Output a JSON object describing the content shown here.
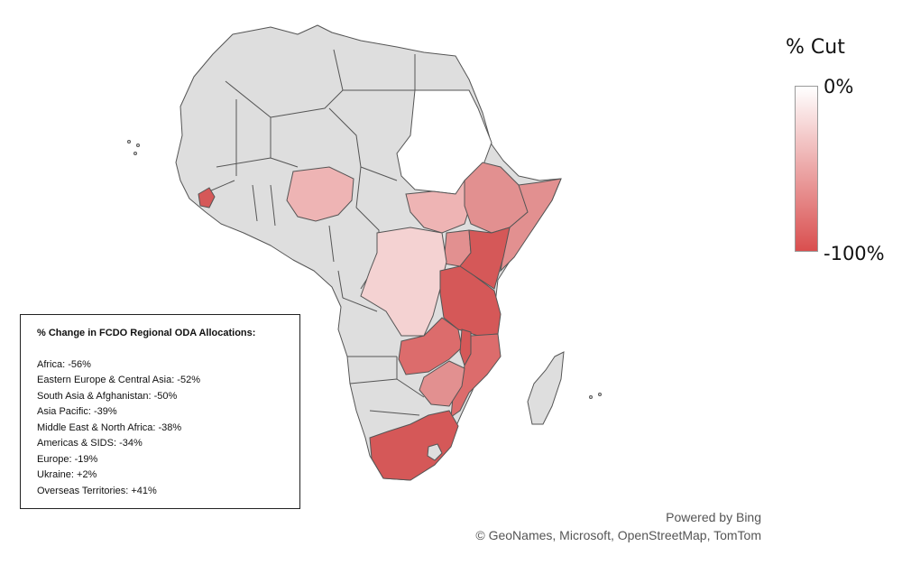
{
  "legend": {
    "title": "% Cut",
    "max_label": "0%",
    "min_label": "-100%",
    "color_low": "#ffffff",
    "color_high": "#d94f4f"
  },
  "info": {
    "title": "% Change in FCDO Regional  ODA Allocations:",
    "rows": [
      "Africa: -56%",
      "Eastern Europe & Central Asia: -52%",
      "South Asia & Afghanistan: -50%",
      "Asia Pacific: -39%",
      "Middle East & North Africa: -38%",
      "Americas & SIDS: -34%",
      "Europe: -19%",
      "Ukraine: +2%",
      "Overseas Territories: +41%"
    ]
  },
  "credits": {
    "line1": "Powered by Bing",
    "line2": "© GeoNames, Microsoft, OpenStreetMap, TomTom"
  },
  "colors": {
    "no_data": "#dedede",
    "border": "#555555",
    "cut_zero": "#ffffff",
    "cut_light": "#f4d2d2",
    "cut_medium_light": "#eeb4b4",
    "cut_medium": "#e29090",
    "cut_strong": "#dc6c6c",
    "cut_max": "#d55858"
  }
}
